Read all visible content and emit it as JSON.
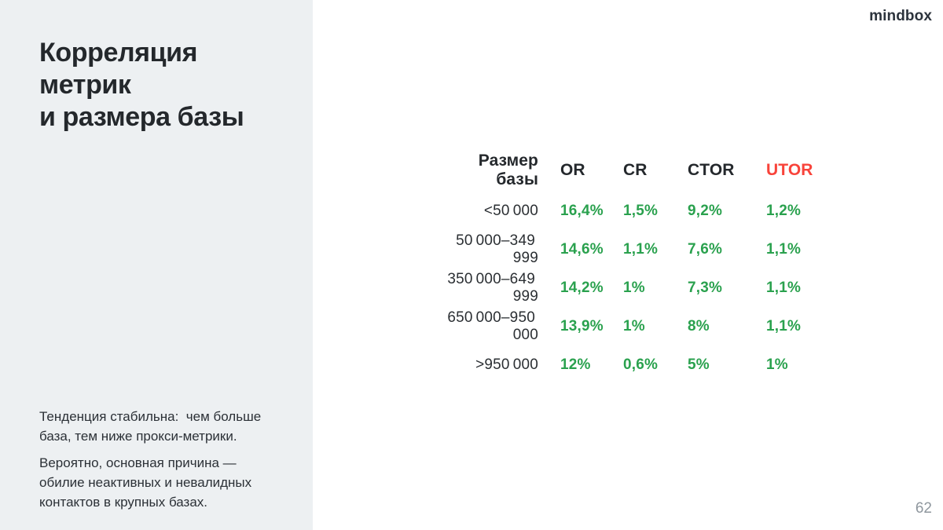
{
  "meta": {
    "logo": "mindbox",
    "page_number": "62"
  },
  "sidebar": {
    "title_lines": [
      "Корреляция",
      "метрик",
      "и размера базы"
    ],
    "notes": [
      "Тенденция стабильна:  чем больше\nбаза, тем ниже прокси-метрики.",
      "Вероятно, основная причина —\nобилие неактивных и невалидных\nконтактов в крупных базах."
    ]
  },
  "table": {
    "headers": {
      "size": "Размер базы",
      "or": "OR",
      "cr": "CR",
      "ctor": "CTOR",
      "utor": "UTOR"
    },
    "rows": [
      {
        "size": "<50 000",
        "or": "16,4%",
        "cr": "1,5%",
        "ctor": "9,2%",
        "utor": "1,2%"
      },
      {
        "size": "50 000–349 999",
        "or": "14,6%",
        "cr": "1,1%",
        "ctor": "7,6%",
        "utor": "1,1%"
      },
      {
        "size": "350 000–649 999",
        "or": "14,2%",
        "cr": "1%",
        "ctor": "7,3%",
        "utor": "1,1%"
      },
      {
        "size": "650 000–950 000",
        "or": "13,9%",
        "cr": "1%",
        "ctor": "8%",
        "utor": "1,1%"
      },
      {
        "size": ">950 000",
        "or": "12%",
        "cr": "0,6%",
        "ctor": "5%",
        "utor": "1%"
      }
    ]
  },
  "colors": {
    "sidebar_bg": "#edf0f2",
    "text_dark": "#24282c",
    "value_green": "#2aa14e",
    "utor_red": "#f8433a",
    "page_number_gray": "#8f979e"
  },
  "chart_data": {
    "type": "table",
    "title": "Корреляция метрик и размера базы",
    "columns": [
      "Размер базы",
      "OR",
      "CR",
      "CTOR",
      "UTOR"
    ],
    "categories": [
      "<50000",
      "50000–349999",
      "350000–649999",
      "650000–950000",
      ">950000"
    ],
    "series": [
      {
        "name": "OR",
        "values": [
          16.4,
          14.6,
          14.2,
          13.9,
          12
        ]
      },
      {
        "name": "CR",
        "values": [
          1.5,
          1.1,
          1,
          1,
          0.6
        ]
      },
      {
        "name": "CTOR",
        "values": [
          9.2,
          7.6,
          7.3,
          8,
          5
        ]
      },
      {
        "name": "UTOR",
        "values": [
          1.2,
          1.1,
          1.1,
          1.1,
          1
        ]
      }
    ],
    "units": "%"
  }
}
